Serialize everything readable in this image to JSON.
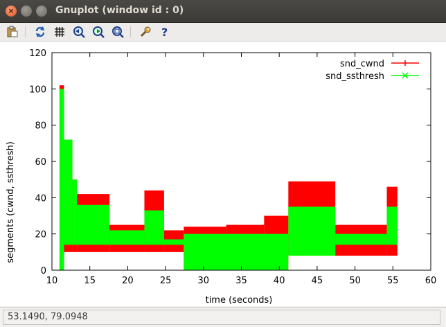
{
  "window": {
    "title": "Gnuplot (window id : 0)"
  },
  "toolbar": {
    "items": [
      {
        "name": "copy-to-clipboard"
      },
      {
        "name": "replot"
      },
      {
        "name": "toggle-grid"
      },
      {
        "name": "zoom-previous"
      },
      {
        "name": "zoom-next"
      },
      {
        "name": "autoscale"
      },
      {
        "name": "preferences"
      },
      {
        "name": "help"
      }
    ]
  },
  "status": {
    "coordinates": "53.1490,  79.0948"
  },
  "colors": {
    "cwnd": "#ff0000",
    "ssthresh": "#00ff00"
  },
  "chart_data": {
    "type": "line",
    "xlabel": "time (seconds)",
    "ylabel": "segments (cwnd, ssthresh)",
    "xlim": [
      10,
      60
    ],
    "ylim": [
      0,
      120
    ],
    "xticks": [
      10,
      15,
      20,
      25,
      30,
      35,
      40,
      45,
      50,
      55,
      60
    ],
    "yticks": [
      0,
      20,
      40,
      60,
      80,
      100,
      120
    ],
    "legend": "top-right",
    "series": [
      {
        "name": "snd_cwnd",
        "color": "#ff0000",
        "bands": [
          {
            "x": [
              11.0,
              11.6
            ],
            "lo": 0,
            "hi": 102
          },
          {
            "x": [
              11.6,
              12.7
            ],
            "lo": 10,
            "hi": 72
          },
          {
            "x": [
              12.7,
              13.3
            ],
            "lo": 10,
            "hi": 50
          },
          {
            "x": [
              13.3,
              17.6
            ],
            "lo": 10,
            "hi": 42
          },
          {
            "x": [
              17.6,
              22.2
            ],
            "lo": 10,
            "hi": 25
          },
          {
            "x": [
              22.2,
              24.8
            ],
            "lo": 10,
            "hi": 44
          },
          {
            "x": [
              24.8,
              27.4
            ],
            "lo": 10,
            "hi": 22
          },
          {
            "x": [
              27.4,
              33.0
            ],
            "lo": 0,
            "hi": 24
          },
          {
            "x": [
              33.0,
              38.0
            ],
            "lo": 0,
            "hi": 25
          },
          {
            "x": [
              38.0,
              41.2
            ],
            "lo": 0,
            "hi": 30
          },
          {
            "x": [
              41.2,
              47.4
            ],
            "lo": 8,
            "hi": 49
          },
          {
            "x": [
              47.4,
              54.2
            ],
            "lo": 8,
            "hi": 25
          },
          {
            "x": [
              54.2,
              55.6
            ],
            "lo": 8,
            "hi": 46
          }
        ]
      },
      {
        "name": "snd_ssthresh",
        "color": "#00ff00",
        "bands": [
          {
            "x": [
              11.0,
              11.6
            ],
            "lo": 0,
            "hi": 100
          },
          {
            "x": [
              11.6,
              12.7
            ],
            "lo": 14,
            "hi": 72
          },
          {
            "x": [
              12.7,
              13.3
            ],
            "lo": 14,
            "hi": 50
          },
          {
            "x": [
              13.3,
              17.6
            ],
            "lo": 14,
            "hi": 36
          },
          {
            "x": [
              17.6,
              22.2
            ],
            "lo": 14,
            "hi": 22
          },
          {
            "x": [
              22.2,
              24.8
            ],
            "lo": 14,
            "hi": 33
          },
          {
            "x": [
              24.8,
              27.4
            ],
            "lo": 14,
            "hi": 17
          },
          {
            "x": [
              27.4,
              41.2
            ],
            "lo": 0,
            "hi": 20
          },
          {
            "x": [
              41.2,
              47.4
            ],
            "lo": 8,
            "hi": 35
          },
          {
            "x": [
              47.4,
              54.2
            ],
            "lo": 14,
            "hi": 20
          },
          {
            "x": [
              54.2,
              55.6
            ],
            "lo": 14,
            "hi": 35
          }
        ]
      }
    ]
  }
}
